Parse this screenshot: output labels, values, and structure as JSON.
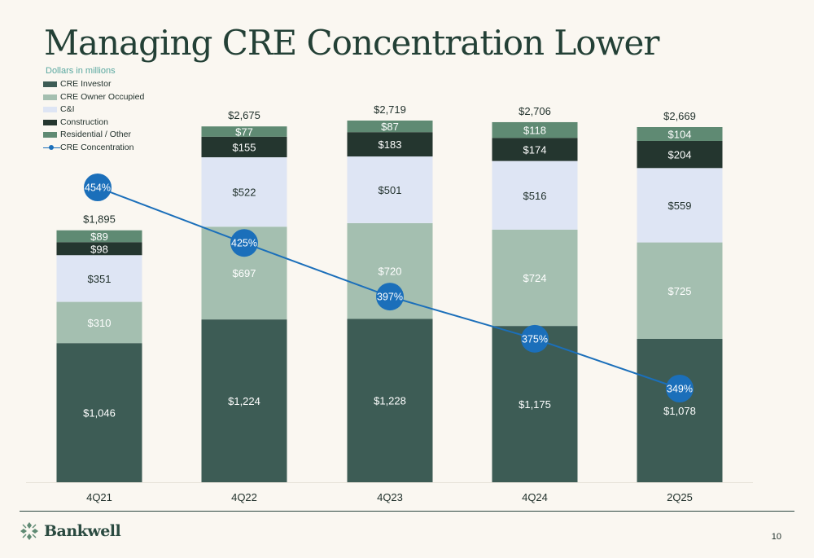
{
  "title": "Managing CRE Concentration Lower",
  "subtitle": "Dollars in millions",
  "page_number": "10",
  "logo_text": "Bankwell",
  "colors": {
    "cre_investor": "#3d5c55",
    "cre_owner_occupied": "#a4bfb0",
    "ci": "#dee5f4",
    "construction": "#24362f",
    "residential_other": "#5f8a73",
    "cre_concentration": "#1b6fba",
    "axis_text": "#1f2f2a"
  },
  "legend": [
    {
      "label": "CRE Investor",
      "color": "#3d5c55",
      "kind": "box"
    },
    {
      "label": "CRE Owner Occupied",
      "color": "#a4bfb0",
      "kind": "box"
    },
    {
      "label": "C&I",
      "color": "#dee5f4",
      "kind": "box"
    },
    {
      "label": "Construction",
      "color": "#24362f",
      "kind": "box"
    },
    {
      "label": "Residential / Other",
      "color": "#5f8a73",
      "kind": "box"
    },
    {
      "label": "CRE Concentration",
      "color": "#1b6fba",
      "kind": "line"
    }
  ],
  "chart_data": {
    "type": "bar",
    "stacked": true,
    "categories": [
      "4Q21",
      "4Q22",
      "4Q23",
      "4Q24",
      "2Q25"
    ],
    "series": [
      {
        "name": "CRE Investor",
        "values": [
          1046,
          1224,
          1228,
          1175,
          1078
        ],
        "labels": [
          "$1,046",
          "$1,224",
          "$1,228",
          "$1,175",
          "$1,078"
        ],
        "color": "#3d5c55",
        "label_color": "#ffffff"
      },
      {
        "name": "CRE Owner Occupied",
        "values": [
          310,
          697,
          720,
          724,
          725
        ],
        "labels": [
          "$310",
          "$697",
          "$720",
          "$724",
          "$725"
        ],
        "color": "#a4bfb0",
        "label_color": "#ffffff"
      },
      {
        "name": "C&I",
        "values": [
          351,
          522,
          501,
          516,
          559
        ],
        "labels": [
          "$351",
          "$522",
          "$501",
          "$516",
          "$559"
        ],
        "color": "#dee5f4",
        "label_color": "#1f2f2a"
      },
      {
        "name": "Construction",
        "values": [
          98,
          155,
          183,
          174,
          204
        ],
        "labels": [
          "$98",
          "$155",
          "$183",
          "$174",
          "$204"
        ],
        "color": "#24362f",
        "label_color": "#ffffff"
      },
      {
        "name": "Residential / Other",
        "values": [
          89,
          77,
          87,
          118,
          104
        ],
        "labels": [
          "$89",
          "$77",
          "$87",
          "$118",
          "$104"
        ],
        "color": "#5f8a73",
        "label_color": "#ffffff"
      }
    ],
    "totals": [
      1895,
      2675,
      2719,
      2706,
      2669
    ],
    "total_labels": [
      "$1,895",
      "$2,675",
      "$2,719",
      "$2,706",
      "$2,669"
    ],
    "line": {
      "name": "CRE Concentration",
      "values": [
        454,
        425,
        397,
        375,
        349
      ],
      "labels": [
        "454%",
        "425%",
        "397%",
        "375%",
        "349%"
      ],
      "color": "#1b6fba",
      "range": [
        330,
        480
      ]
    },
    "ylim": [
      0,
      2850
    ],
    "legend_position": "top-left",
    "grid": false
  }
}
